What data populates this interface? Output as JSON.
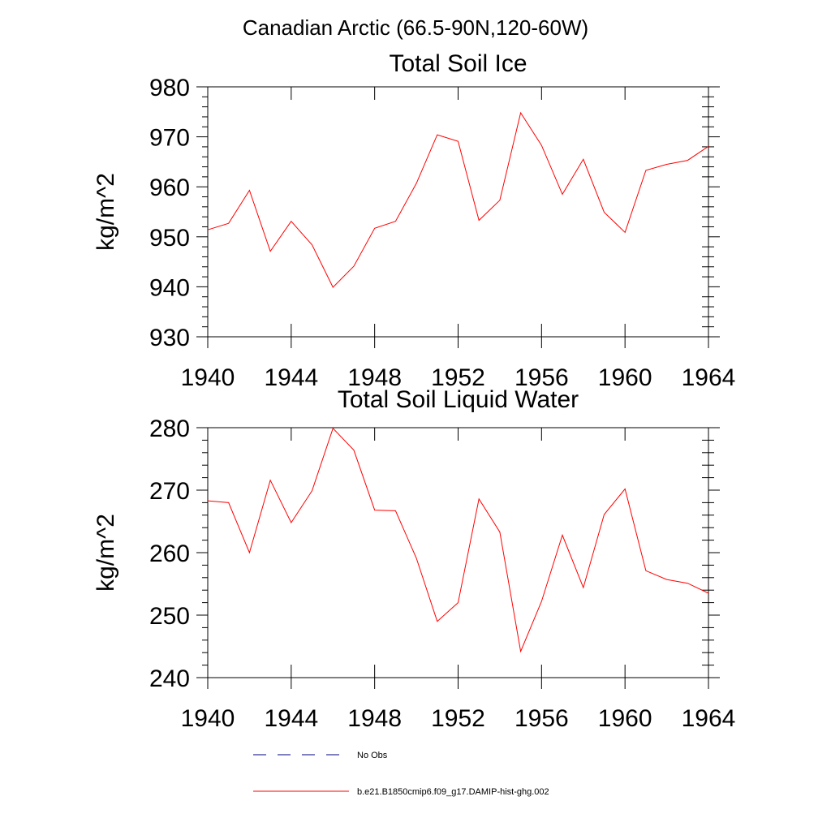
{
  "page_title": "Canadian Arctic (66.5-90N,120-60W)",
  "colors": {
    "series": "#ff0000",
    "no_obs": "#000080",
    "axis": "#000000"
  },
  "chart_data": [
    {
      "type": "line",
      "title": "Total Soil Ice",
      "ylabel": "kg/m^2",
      "xlabel": "",
      "xlim": [
        1940,
        1964
      ],
      "ylim": [
        930,
        980
      ],
      "xticks": [
        1940,
        1944,
        1948,
        1952,
        1956,
        1960,
        1964
      ],
      "yticks": [
        930,
        940,
        950,
        960,
        970,
        980
      ],
      "grid": false,
      "x": [
        1940,
        1941,
        1942,
        1943,
        1944,
        1945,
        1946,
        1947,
        1948,
        1949,
        1950,
        1951,
        1952,
        1953,
        1954,
        1955,
        1956,
        1957,
        1958,
        1959,
        1960,
        1961,
        1962,
        1963,
        1964
      ],
      "series": [
        {
          "name": "b.e21.B1850cmip6.f09_g17.DAMIP-hist-ghg.002",
          "values": [
            951.4,
            952.7,
            959.3,
            947.1,
            953.1,
            948.4,
            939.9,
            944.1,
            951.7,
            953.1,
            960.7,
            970.4,
            969.1,
            953.3,
            957.3,
            974.8,
            968.3,
            958.5,
            965.5,
            954.9,
            950.9,
            963.3,
            964.5,
            965.3,
            968.1
          ]
        }
      ]
    },
    {
      "type": "line",
      "title": "Total Soil Liquid Water",
      "ylabel": "kg/m^2",
      "xlabel": "",
      "xlim": [
        1940,
        1964
      ],
      "ylim": [
        240,
        280
      ],
      "xticks": [
        1940,
        1944,
        1948,
        1952,
        1956,
        1960,
        1964
      ],
      "yticks": [
        240,
        250,
        260,
        270,
        280
      ],
      "grid": false,
      "x": [
        1940,
        1941,
        1942,
        1943,
        1944,
        1945,
        1946,
        1947,
        1948,
        1949,
        1950,
        1951,
        1952,
        1953,
        1954,
        1955,
        1956,
        1957,
        1958,
        1959,
        1960,
        1961,
        1962,
        1963,
        1964
      ],
      "series": [
        {
          "name": "b.e21.B1850cmip6.f09_g17.DAMIP-hist-ghg.002",
          "values": [
            268.3,
            268.0,
            260.0,
            271.6,
            264.8,
            269.9,
            279.9,
            276.4,
            266.8,
            266.7,
            259.1,
            249.0,
            252.0,
            268.6,
            263.3,
            244.2,
            252.2,
            262.8,
            254.4,
            266.1,
            270.2,
            257.1,
            255.7,
            255.1,
            253.5
          ]
        }
      ]
    }
  ],
  "legend": {
    "position": "bottom",
    "entries": [
      {
        "label": "No Obs",
        "style": "dashed"
      },
      {
        "label": "b.e21.B1850cmip6.f09_g17.DAMIP-hist-ghg.002",
        "style": "solid"
      }
    ]
  }
}
